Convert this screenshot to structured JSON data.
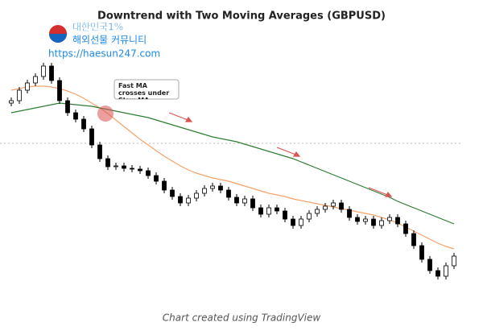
{
  "chart_data": {
    "type": "candlestick",
    "title": "Downtrend with Two Moving Averages (GBPUSD)",
    "annotation": "Fast MA crosses under Slow MA",
    "caption": "Chart created using TradingView",
    "watermark": [
      "대한민국1%",
      "해외선물 커뮤니티",
      "https://haesun247.com"
    ],
    "categories": [
      null,
      null,
      null,
      null,
      null,
      null,
      null,
      null,
      null,
      null,
      null,
      null,
      null,
      null,
      null,
      null,
      null,
      null,
      null,
      null,
      null,
      null,
      null,
      null,
      null,
      null,
      null,
      null,
      null,
      null,
      null,
      null,
      null,
      null,
      null,
      null,
      null,
      null,
      null,
      null,
      null,
      null,
      null,
      null,
      null,
      null,
      null,
      null,
      null,
      null,
      null,
      null,
      null,
      null,
      null,
      null
    ],
    "open": [
      272,
      275,
      288,
      297,
      305,
      318,
      300,
      275,
      260,
      252,
      240,
      220,
      203,
      193,
      194,
      191,
      190,
      188,
      182,
      175,
      164,
      156,
      148,
      154,
      160,
      166,
      169,
      164,
      155,
      148,
      153,
      142,
      134,
      142,
      138,
      128,
      120,
      128,
      135,
      140,
      144,
      148,
      140,
      130,
      125,
      128,
      120,
      126,
      130,
      122,
      110,
      95,
      78,
      64,
      57,
      70
    ],
    "high": [
      279,
      292,
      301,
      309,
      322,
      322,
      304,
      279,
      264,
      256,
      244,
      224,
      207,
      198,
      198,
      195,
      194,
      192,
      186,
      179,
      168,
      160,
      158,
      164,
      170,
      173,
      173,
      168,
      159,
      157,
      157,
      146,
      146,
      146,
      142,
      132,
      132,
      139,
      144,
      148,
      152,
      152,
      144,
      134,
      132,
      132,
      130,
      134,
      134,
      126,
      114,
      99,
      82,
      68,
      74,
      86
    ],
    "low": [
      268,
      271,
      284,
      293,
      301,
      296,
      271,
      256,
      248,
      236,
      216,
      199,
      189,
      189,
      187,
      186,
      184,
      178,
      171,
      160,
      152,
      144,
      144,
      150,
      156,
      162,
      160,
      151,
      144,
      144,
      138,
      130,
      130,
      134,
      124,
      116,
      116,
      124,
      131,
      136,
      140,
      136,
      126,
      121,
      121,
      116,
      116,
      122,
      118,
      106,
      91,
      74,
      60,
      53,
      53,
      66
    ],
    "close": [
      275,
      288,
      297,
      305,
      318,
      300,
      275,
      260,
      252,
      240,
      220,
      203,
      193,
      194,
      191,
      190,
      188,
      182,
      175,
      164,
      156,
      148,
      154,
      160,
      166,
      169,
      164,
      155,
      148,
      153,
      142,
      134,
      142,
      138,
      128,
      120,
      128,
      135,
      140,
      144,
      148,
      140,
      130,
      125,
      128,
      120,
      126,
      130,
      122,
      110,
      95,
      78,
      64,
      57,
      70,
      82
    ],
    "up_color": "#ffffff",
    "down_color": "#000000",
    "lines": [
      {
        "color": "#f4a36b",
        "values": [
          288,
          290,
          292,
          293,
          293,
          292,
          290,
          287,
          283,
          278,
          272,
          266,
          259,
          251,
          243,
          235,
          227,
          220,
          213,
          206,
          200,
          194,
          189,
          185,
          182,
          179,
          177,
          175,
          172,
          169,
          166,
          163,
          160,
          158,
          156,
          153,
          151,
          149,
          147,
          145,
          143,
          141,
          139,
          137,
          135,
          133,
          130,
          127,
          123,
          118,
          113,
          108,
          103,
          98,
          94,
          91
        ]
      },
      {
        "color": "#2e7d32",
        "values": [
          260,
          262,
          264,
          266,
          268,
          270,
          272,
          271,
          270,
          269,
          268,
          266,
          264,
          262,
          260,
          258,
          256,
          254,
          251,
          248,
          245,
          242,
          239,
          236,
          233,
          230,
          228,
          226,
          224,
          221,
          218,
          215,
          212,
          209,
          206,
          203,
          199,
          195,
          191,
          187,
          183,
          179,
          175,
          171,
          167,
          163,
          159,
          155,
          150,
          146,
          142,
          138,
          134,
          130,
          126,
          122
        ]
      }
    ],
    "cross_index": 12,
    "hline": 222,
    "ylim": [
      35,
      340
    ]
  }
}
